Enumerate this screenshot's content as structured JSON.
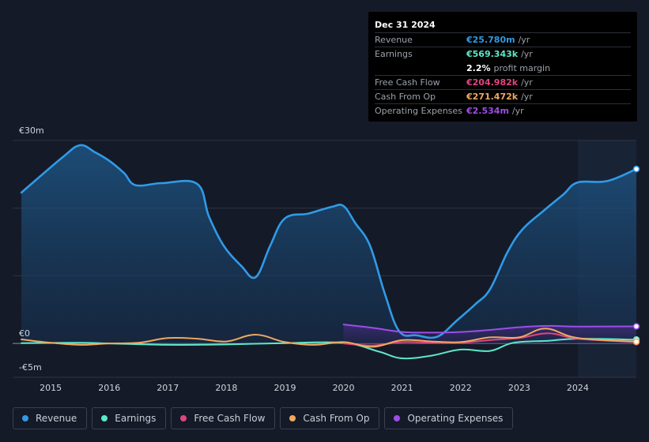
{
  "tooltip": {
    "date": "Dec 31 2024",
    "rows": [
      {
        "label": "Revenue",
        "value": "€25.780m",
        "unit": "/yr",
        "color": "#2f9be8"
      },
      {
        "label": "Earnings",
        "value": "€569.343k",
        "unit": "/yr",
        "color": "#5ee8c8"
      },
      {
        "label": "",
        "value": "2.2%",
        "unit": "profit margin",
        "color": "#ffffff"
      },
      {
        "label": "Free Cash Flow",
        "value": "€204.982k",
        "unit": "/yr",
        "color": "#e0467e"
      },
      {
        "label": "Cash From Op",
        "value": "€271.472k",
        "unit": "/yr",
        "color": "#f0a860"
      },
      {
        "label": "Operating Expenses",
        "value": "€2.534m",
        "unit": "/yr",
        "color": "#9b4fe6"
      }
    ]
  },
  "legend": [
    {
      "label": "Revenue",
      "color": "#2f9be8"
    },
    {
      "label": "Earnings",
      "color": "#5ee8c8"
    },
    {
      "label": "Free Cash Flow",
      "color": "#e0467e"
    },
    {
      "label": "Cash From Op",
      "color": "#f0a860"
    },
    {
      "label": "Operating Expenses",
      "color": "#9b4fe6"
    }
  ],
  "chart_data": {
    "type": "line",
    "title": "",
    "xlabel": "",
    "ylabel": "",
    "ylim": [
      -5,
      30
    ],
    "xlim": [
      2014.35,
      2025.0
    ],
    "y_tick_labels": [
      {
        "value": 30,
        "label": "€30m"
      },
      {
        "value": 0,
        "label": "€0"
      },
      {
        "value": -5,
        "label": "-€5m"
      }
    ],
    "x_ticks": [
      {
        "value": 2015,
        "label": "2015"
      },
      {
        "value": 2016,
        "label": "2016"
      },
      {
        "value": 2017,
        "label": "2017"
      },
      {
        "value": 2018,
        "label": "2018"
      },
      {
        "value": 2019,
        "label": "2019"
      },
      {
        "value": 2020,
        "label": "2020"
      },
      {
        "value": 2021,
        "label": "2021"
      },
      {
        "value": 2022,
        "label": "2022"
      },
      {
        "value": 2023,
        "label": "2023"
      },
      {
        "value": 2024,
        "label": "2024"
      }
    ],
    "forecast_start": 2024.0,
    "series": [
      {
        "name": "Revenue",
        "color": "#2f9be8",
        "area": true,
        "points": [
          [
            2014.5,
            22.3
          ],
          [
            2015.2,
            27.5
          ],
          [
            2015.5,
            29.3
          ],
          [
            2015.75,
            28.3
          ],
          [
            2016.0,
            27.0
          ],
          [
            2016.25,
            25.2
          ],
          [
            2016.45,
            23.4
          ],
          [
            2016.9,
            23.7
          ],
          [
            2017.5,
            23.6
          ],
          [
            2017.7,
            18.8
          ],
          [
            2017.95,
            14.5
          ],
          [
            2018.25,
            11.5
          ],
          [
            2018.5,
            9.8
          ],
          [
            2018.75,
            14.5
          ],
          [
            2019.0,
            18.5
          ],
          [
            2019.4,
            19.2
          ],
          [
            2019.8,
            20.2
          ],
          [
            2020.0,
            20.3
          ],
          [
            2020.2,
            17.8
          ],
          [
            2020.45,
            14.5
          ],
          [
            2020.7,
            7.5
          ],
          [
            2020.95,
            1.8
          ],
          [
            2021.25,
            1.2
          ],
          [
            2021.6,
            1.0
          ],
          [
            2021.95,
            3.5
          ],
          [
            2022.25,
            5.8
          ],
          [
            2022.5,
            8.0
          ],
          [
            2022.8,
            13.5
          ],
          [
            2023.05,
            16.8
          ],
          [
            2023.4,
            19.5
          ],
          [
            2023.75,
            22.0
          ],
          [
            2024.0,
            23.8
          ],
          [
            2024.5,
            24.0
          ],
          [
            2025.0,
            25.78
          ]
        ]
      },
      {
        "name": "Earnings",
        "color": "#5ee8c8",
        "area": false,
        "points": [
          [
            2014.5,
            0.05
          ],
          [
            2015.5,
            0.1
          ],
          [
            2016.0,
            0.0
          ],
          [
            2017.0,
            -0.2
          ],
          [
            2018.0,
            -0.15
          ],
          [
            2019.0,
            0.05
          ],
          [
            2020.0,
            0.1
          ],
          [
            2020.6,
            -1.2
          ],
          [
            2021.0,
            -2.2
          ],
          [
            2021.5,
            -1.8
          ],
          [
            2022.0,
            -0.9
          ],
          [
            2022.5,
            -1.1
          ],
          [
            2022.9,
            0.1
          ],
          [
            2023.5,
            0.4
          ],
          [
            2024.0,
            0.7
          ],
          [
            2025.0,
            0.57
          ]
        ]
      },
      {
        "name": "Free Cash Flow",
        "color": "#e0467e",
        "area": false,
        "points": [
          [
            2020.0,
            0.0
          ],
          [
            2020.5,
            -0.3
          ],
          [
            2021.0,
            0.2
          ],
          [
            2021.5,
            0.1
          ],
          [
            2022.0,
            0.1
          ],
          [
            2022.5,
            0.5
          ],
          [
            2023.0,
            0.8
          ],
          [
            2023.5,
            1.5
          ],
          [
            2024.0,
            0.7
          ],
          [
            2025.0,
            0.2
          ]
        ]
      },
      {
        "name": "Cash From Op",
        "color": "#f0a860",
        "area": false,
        "points": [
          [
            2014.5,
            0.6
          ],
          [
            2015.0,
            0.1
          ],
          [
            2015.5,
            -0.2
          ],
          [
            2016.0,
            0.0
          ],
          [
            2016.5,
            0.1
          ],
          [
            2017.0,
            0.8
          ],
          [
            2017.5,
            0.7
          ],
          [
            2018.0,
            0.3
          ],
          [
            2018.5,
            1.3
          ],
          [
            2019.0,
            0.2
          ],
          [
            2019.5,
            -0.2
          ],
          [
            2020.0,
            0.2
          ],
          [
            2020.5,
            -0.5
          ],
          [
            2021.0,
            0.5
          ],
          [
            2021.5,
            0.3
          ],
          [
            2022.0,
            0.2
          ],
          [
            2022.5,
            0.9
          ],
          [
            2023.0,
            0.9
          ],
          [
            2023.45,
            2.2
          ],
          [
            2024.0,
            0.8
          ],
          [
            2025.0,
            0.27
          ]
        ]
      },
      {
        "name": "Operating Expenses",
        "color": "#9b4fe6",
        "area": true,
        "points": [
          [
            2020.0,
            2.8
          ],
          [
            2020.5,
            2.3
          ],
          [
            2021.0,
            1.7
          ],
          [
            2021.5,
            1.6
          ],
          [
            2022.0,
            1.7
          ],
          [
            2022.5,
            2.0
          ],
          [
            2023.0,
            2.4
          ],
          [
            2023.5,
            2.6
          ],
          [
            2024.0,
            2.5
          ],
          [
            2025.0,
            2.53
          ]
        ]
      }
    ]
  }
}
